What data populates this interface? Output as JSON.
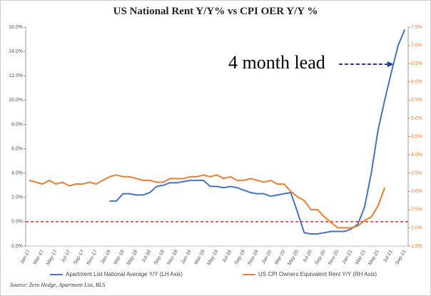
{
  "chart_data": {
    "type": "line",
    "title": "US National Rent Y/Y%  vs CPI OER Y/Y %",
    "annotation": "4 month lead",
    "source": "Source: Zero Hedge, Apartment List, BLS",
    "categories": [
      "Jan-17",
      null,
      "Mar-17",
      null,
      "May-17",
      null,
      "Jul-17",
      null,
      "Sep-17",
      null,
      "Nov-17",
      null,
      "Jan-18",
      null,
      "Mar-18",
      null,
      "May-18",
      null,
      "Jul-18",
      null,
      "Sep-18",
      null,
      "Nov-18",
      null,
      "Jan-19",
      null,
      "Mar-19",
      null,
      "May-19",
      null,
      "Jul-19",
      null,
      "Sep-19",
      null,
      "Nov-19",
      null,
      "Jan-20",
      null,
      "Mar-20",
      null,
      "May-20",
      null,
      "Jul-20",
      null,
      "Sep-20",
      null,
      "Nov-20",
      null,
      "Jan-21",
      null,
      "Mar-21",
      null,
      "May-21",
      null,
      "Jul-21",
      null,
      "Sep-21"
    ],
    "series": [
      {
        "name": "Apartment List  National Average Y/Y (LH Axis)",
        "color": "#4472c4",
        "values": [
          null,
          null,
          null,
          null,
          null,
          null,
          null,
          null,
          null,
          null,
          null,
          null,
          1.7,
          1.7,
          2.3,
          2.3,
          2.2,
          2.2,
          2.4,
          2.9,
          3.0,
          3.2,
          3.2,
          3.3,
          3.4,
          3.4,
          3.4,
          2.9,
          2.9,
          2.8,
          2.9,
          2.8,
          2.6,
          2.4,
          2.3,
          2.3,
          2.1,
          2.2,
          2.3,
          2.4,
          0.8,
          -0.9,
          -1.0,
          -1.0,
          -0.9,
          -0.8,
          -0.8,
          -0.8,
          -0.6,
          -0.2,
          1.2,
          4.0,
          7.5,
          10.0,
          12.3,
          14.5,
          15.8
        ]
      },
      {
        "name": "US CPI Owners Equivalent Rent Y/Y (RH Axis)",
        "color": "#ed7d31",
        "axis": "y2",
        "values": [
          3.3,
          3.25,
          3.2,
          3.3,
          3.2,
          3.25,
          3.15,
          3.2,
          3.2,
          3.25,
          3.2,
          3.3,
          3.4,
          3.45,
          3.4,
          3.4,
          3.35,
          3.3,
          3.3,
          3.25,
          3.25,
          3.35,
          3.35,
          3.35,
          3.4,
          3.4,
          3.45,
          3.4,
          3.45,
          3.35,
          3.4,
          3.3,
          3.3,
          3.35,
          3.3,
          3.25,
          3.3,
          3.2,
          3.2,
          3.0,
          2.85,
          2.75,
          2.5,
          2.5,
          2.3,
          2.15,
          2.0,
          2.0,
          2.0,
          2.05,
          2.2,
          2.3,
          2.6,
          3.1,
          null,
          null,
          null
        ]
      }
    ],
    "reference_line": {
      "value": 0,
      "color": "#e03030"
    },
    "ylim": [
      -2,
      16
    ],
    "yticks": [
      {
        "value": -2,
        "label": "-2.0%"
      },
      {
        "value": 0,
        "label": "0.0%"
      },
      {
        "value": 2,
        "label": "2.0%"
      },
      {
        "value": 4,
        "label": "4.0%"
      },
      {
        "value": 6,
        "label": "6.0%"
      },
      {
        "value": 8,
        "label": "8.0%"
      },
      {
        "value": 10,
        "label": "10.0%"
      },
      {
        "value": 12,
        "label": "12.0%"
      },
      {
        "value": 14,
        "label": "14.0%"
      },
      {
        "value": 16,
        "label": "16.0%"
      }
    ],
    "y2lim": [
      1.5,
      7.5
    ],
    "y2ticks": [
      {
        "value": 1.5,
        "label": "1.5%"
      },
      {
        "value": 2,
        "label": "2.0%"
      },
      {
        "value": 2.5,
        "label": "2.5%"
      },
      {
        "value": 3,
        "label": "3.0%"
      },
      {
        "value": 3.5,
        "label": "3.5%"
      },
      {
        "value": 4,
        "label": "4.0%"
      },
      {
        "value": 4.5,
        "label": "4.5%"
      },
      {
        "value": 5,
        "label": "5.0%"
      },
      {
        "value": 5.5,
        "label": "5.5%"
      },
      {
        "value": 6,
        "label": "6.0%"
      },
      {
        "value": 6.5,
        "label": "6.5%"
      },
      {
        "value": 7,
        "label": "7.0%"
      },
      {
        "value": 7.5,
        "label": "7.5%"
      }
    ],
    "grid": false
  }
}
